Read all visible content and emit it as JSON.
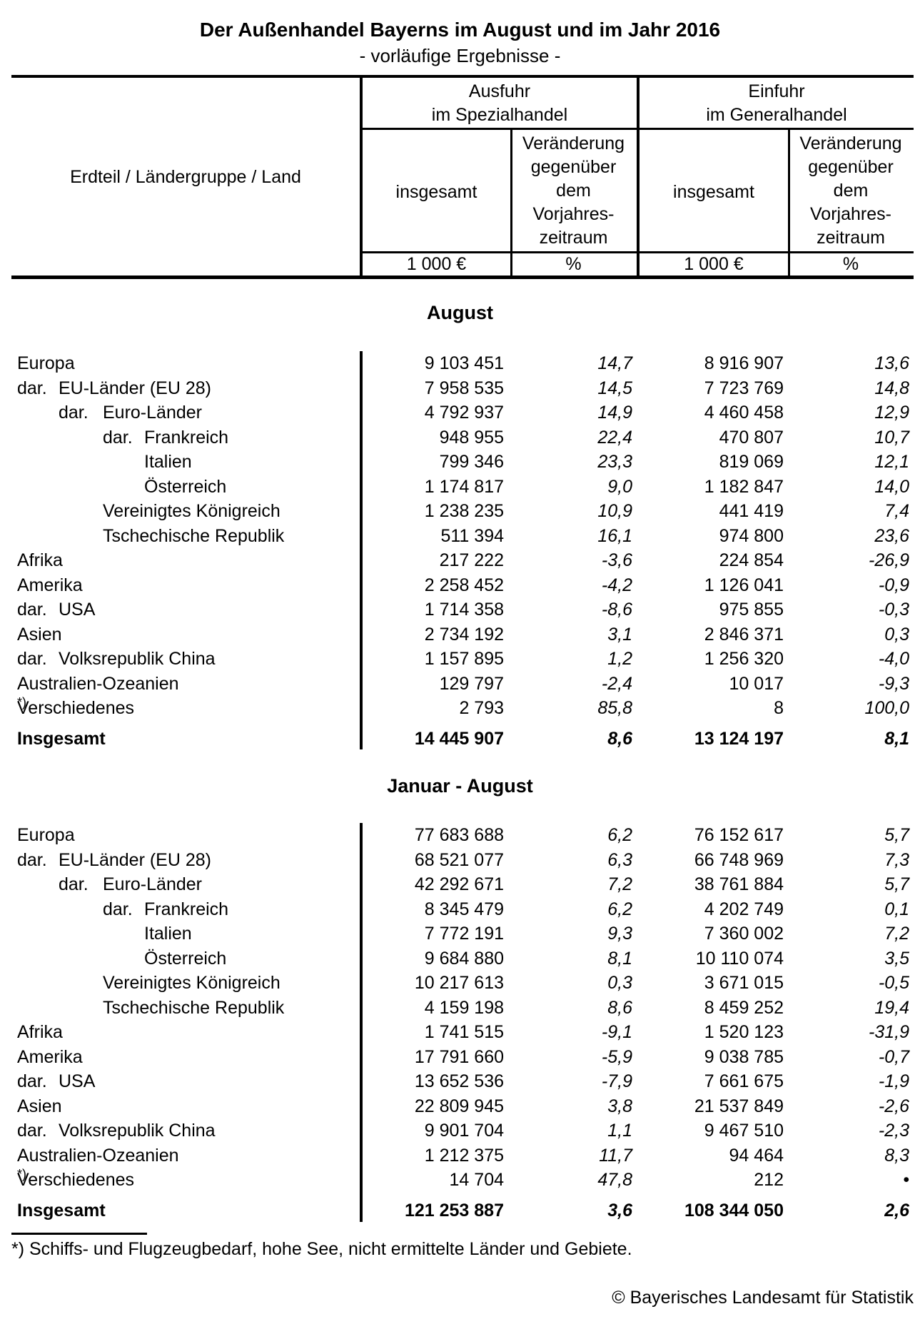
{
  "title": "Der Außenhandel Bayerns im August und im Jahr 2016",
  "subtitle": "- vorläufige Ergebnisse -",
  "table_header": {
    "row_label": "Erdteil / Ländergruppe / Land",
    "export_group": "Ausfuhr\nim Spezialhandel",
    "import_group": "Einfuhr\nim Generalhandel",
    "total_label": "insgesamt",
    "change_label": "Veränderung\ngegenüber\ndem\nVorjahres-\nzeitraum",
    "unit_value": "1 000 €",
    "unit_pct": "%"
  },
  "sections": [
    {
      "heading": "August",
      "rows": [
        {
          "prefix": "",
          "label": "Europa",
          "level": 0,
          "bold": false,
          "export_total": "9 103 451",
          "export_change": "14,7",
          "import_total": "8 916 907",
          "import_change": "13,6"
        },
        {
          "prefix": "dar.",
          "label": "EU-Länder (EU 28)",
          "level": 1,
          "bold": false,
          "export_total": "7 958 535",
          "export_change": "14,5",
          "import_total": "7 723 769",
          "import_change": "14,8"
        },
        {
          "prefix": "dar.",
          "label": "Euro-Länder",
          "level": 2,
          "bold": false,
          "export_total": "4 792 937",
          "export_change": "14,9",
          "import_total": "4 460 458",
          "import_change": "12,9"
        },
        {
          "prefix": "dar.",
          "label": "Frankreich",
          "level": 3,
          "bold": false,
          "export_total": "948 955",
          "export_change": "22,4",
          "import_total": "470 807",
          "import_change": "10,7"
        },
        {
          "prefix": "",
          "label": "Italien",
          "level": 3,
          "bold": false,
          "export_total": "799 346",
          "export_change": "23,3",
          "import_total": "819 069",
          "import_change": "12,1"
        },
        {
          "prefix": "",
          "label": "Österreich",
          "level": 3,
          "bold": false,
          "export_total": "1 174 817",
          "export_change": "9,0",
          "import_total": "1 182 847",
          "import_change": "14,0"
        },
        {
          "prefix": "",
          "label": "Vereinigtes Königreich",
          "level": 2,
          "bold": false,
          "export_total": "1 238 235",
          "export_change": "10,9",
          "import_total": "441 419",
          "import_change": "7,4"
        },
        {
          "prefix": "",
          "label": "Tschechische Republik",
          "level": 2,
          "bold": false,
          "export_total": "511 394",
          "export_change": "16,1",
          "import_total": "974 800",
          "import_change": "23,6"
        },
        {
          "prefix": "",
          "label": "Afrika",
          "level": 0,
          "bold": false,
          "export_total": "217 222",
          "export_change": "-3,6",
          "import_total": "224 854",
          "import_change": "-26,9"
        },
        {
          "prefix": "",
          "label": "Amerika",
          "level": 0,
          "bold": false,
          "export_total": "2 258 452",
          "export_change": "-4,2",
          "import_total": "1 126 041",
          "import_change": "-0,9"
        },
        {
          "prefix": "dar.",
          "label": "USA",
          "level": 1,
          "bold": false,
          "export_total": "1 714 358",
          "export_change": "-8,6",
          "import_total": "975 855",
          "import_change": "-0,3"
        },
        {
          "prefix": "",
          "label": "Asien",
          "level": 0,
          "bold": false,
          "export_total": "2 734 192",
          "export_change": "3,1",
          "import_total": "2 846 371",
          "import_change": "0,3"
        },
        {
          "prefix": "dar.",
          "label": "Volksrepublik China",
          "level": 1,
          "bold": false,
          "export_total": "1 157 895",
          "export_change": "1,2",
          "import_total": "1 256 320",
          "import_change": "-4,0"
        },
        {
          "prefix": "",
          "label": "Australien-Ozeanien",
          "level": 0,
          "bold": false,
          "export_total": "129 797",
          "export_change": "-2,4",
          "import_total": "10 017",
          "import_change": "-9,3"
        },
        {
          "prefix": "",
          "label": "Verschiedenes",
          "sup": "*)",
          "level": 0,
          "bold": false,
          "export_total": "2 793",
          "export_change": "85,8",
          "import_total": "8",
          "import_change": "100,0"
        },
        {
          "prefix": "",
          "label": "Insgesamt",
          "level": 0,
          "bold": true,
          "export_total": "14 445 907",
          "export_change": "8,6",
          "import_total": "13 124 197",
          "import_change": "8,1"
        }
      ]
    },
    {
      "heading": "Januar - August",
      "rows": [
        {
          "prefix": "",
          "label": "Europa",
          "level": 0,
          "bold": false,
          "export_total": "77 683 688",
          "export_change": "6,2",
          "import_total": "76 152 617",
          "import_change": "5,7"
        },
        {
          "prefix": "dar.",
          "label": "EU-Länder (EU 28)",
          "level": 1,
          "bold": false,
          "export_total": "68 521 077",
          "export_change": "6,3",
          "import_total": "66 748 969",
          "import_change": "7,3"
        },
        {
          "prefix": "dar.",
          "label": "Euro-Länder",
          "level": 2,
          "bold": false,
          "export_total": "42 292 671",
          "export_change": "7,2",
          "import_total": "38 761 884",
          "import_change": "5,7"
        },
        {
          "prefix": "dar.",
          "label": "Frankreich",
          "level": 3,
          "bold": false,
          "export_total": "8 345 479",
          "export_change": "6,2",
          "import_total": "4 202 749",
          "import_change": "0,1"
        },
        {
          "prefix": "",
          "label": "Italien",
          "level": 3,
          "bold": false,
          "export_total": "7 772 191",
          "export_change": "9,3",
          "import_total": "7 360 002",
          "import_change": "7,2"
        },
        {
          "prefix": "",
          "label": "Österreich",
          "level": 3,
          "bold": false,
          "export_total": "9 684 880",
          "export_change": "8,1",
          "import_total": "10 110 074",
          "import_change": "3,5"
        },
        {
          "prefix": "",
          "label": "Vereinigtes Königreich",
          "level": 2,
          "bold": false,
          "export_total": "10 217 613",
          "export_change": "0,3",
          "import_total": "3 671 015",
          "import_change": "-0,5"
        },
        {
          "prefix": "",
          "label": "Tschechische Republik",
          "level": 2,
          "bold": false,
          "export_total": "4 159 198",
          "export_change": "8,6",
          "import_total": "8 459 252",
          "import_change": "19,4"
        },
        {
          "prefix": "",
          "label": "Afrika",
          "level": 0,
          "bold": false,
          "export_total": "1 741 515",
          "export_change": "-9,1",
          "import_total": "1 520 123",
          "import_change": "-31,9"
        },
        {
          "prefix": "",
          "label": "Amerika",
          "level": 0,
          "bold": false,
          "export_total": "17 791 660",
          "export_change": "-5,9",
          "import_total": "9 038 785",
          "import_change": "-0,7"
        },
        {
          "prefix": "dar.",
          "label": "USA",
          "level": 1,
          "bold": false,
          "export_total": "13 652 536",
          "export_change": "-7,9",
          "import_total": "7 661 675",
          "import_change": "-1,9"
        },
        {
          "prefix": "",
          "label": "Asien",
          "level": 0,
          "bold": false,
          "export_total": "22 809 945",
          "export_change": "3,8",
          "import_total": "21 537 849",
          "import_change": "-2,6"
        },
        {
          "prefix": "dar.",
          "label": "Volksrepublik China",
          "level": 1,
          "bold": false,
          "export_total": "9 901 704",
          "export_change": "1,1",
          "import_total": "9 467 510",
          "import_change": "-2,3"
        },
        {
          "prefix": "",
          "label": "Australien-Ozeanien",
          "level": 0,
          "bold": false,
          "export_total": "1 212 375",
          "export_change": "11,7",
          "import_total": "94 464",
          "import_change": "8,3"
        },
        {
          "prefix": "",
          "label": "Verschiedenes",
          "sup": "*)",
          "level": 0,
          "bold": false,
          "export_total": "14 704",
          "export_change": "47,8",
          "import_total": "212",
          "import_change": "•"
        },
        {
          "prefix": "",
          "label": "Insgesamt",
          "level": 0,
          "bold": true,
          "export_total": "121 253 887",
          "export_change": "3,6",
          "import_total": "108 344 050",
          "import_change": "2,6"
        }
      ]
    }
  ],
  "footnote": "*) Schiffs- und Flugzeugbedarf, hohe See, nicht ermittelte Länder und Gebiete.",
  "copyright": "© Bayerisches Landesamt für Statistik"
}
